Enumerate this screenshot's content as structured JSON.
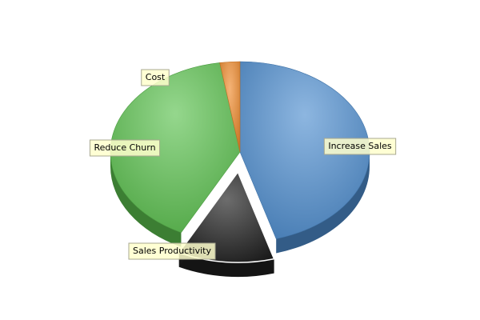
{
  "chart_data": {
    "type": "pie",
    "style": "3d-exploded",
    "title": "",
    "legend": "none",
    "slices": [
      {
        "name": "Increase Sales",
        "value": 45.5,
        "color": "#4f8ed0",
        "exploded": false
      },
      {
        "name": "Sales Productivity",
        "value": 12.0,
        "color": "#1e1e1e",
        "exploded": true
      },
      {
        "name": "Reduce Churn",
        "value": 40.0,
        "color": "#5cc24f",
        "exploded": false
      },
      {
        "name": "Cost",
        "value": 2.5,
        "color": "#ef8a2c",
        "exploded": false
      }
    ]
  }
}
